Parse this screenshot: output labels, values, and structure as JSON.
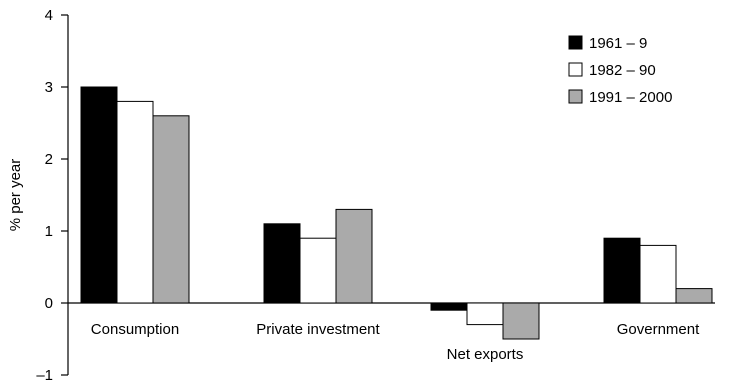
{
  "chart_data": {
    "type": "bar",
    "title": "",
    "xlabel": "",
    "ylabel": "% per year",
    "ylim": [
      -1,
      4
    ],
    "yticks": [
      -1,
      0,
      1,
      2,
      3,
      4
    ],
    "ytick_labels": [
      "–1",
      "0",
      "1",
      "2",
      "3",
      "4"
    ],
    "grid": false,
    "legend_position": "top-right",
    "categories": [
      "Consumption",
      "Private investment",
      "Net exports",
      "Government"
    ],
    "series": [
      {
        "name": "1961 – 9",
        "color": "#000000",
        "values": [
          3.0,
          1.1,
          -0.1,
          0.9
        ]
      },
      {
        "name": "1982 – 90",
        "color": "#ffffff",
        "values": [
          2.8,
          0.9,
          -0.3,
          0.8
        ]
      },
      {
        "name": "1991 – 2000",
        "color": "#aaaaaa",
        "values": [
          2.6,
          1.3,
          -0.5,
          0.2
        ]
      }
    ]
  }
}
